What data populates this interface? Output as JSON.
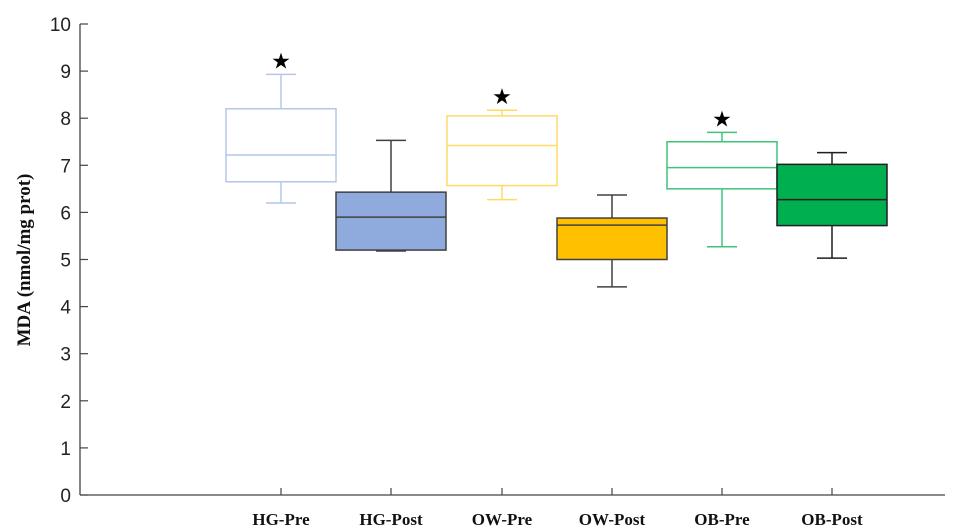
{
  "chart_data": {
    "type": "box",
    "title": "",
    "xlabel": "",
    "ylabel": "MDA (nmol/mg prot)",
    "ylim": [
      0,
      10
    ],
    "yticks": [
      0,
      1,
      2,
      3,
      4,
      5,
      6,
      7,
      8,
      9,
      10
    ],
    "grid": false,
    "categories": [
      "HG-Pre",
      "HG-Post",
      "OW-Pre",
      "OW-Post",
      "OB-Pre",
      "OB-Post"
    ],
    "boxes": [
      {
        "category": "HG-Pre",
        "whisker_low": 6.2,
        "q1": 6.65,
        "median": 7.22,
        "q3": 8.2,
        "whisker_high": 8.93,
        "significance": "★",
        "fill": "#ffffff",
        "stroke": "#b4c7e7",
        "median_color": "#b4c7e7"
      },
      {
        "category": "HG-Post",
        "whisker_low": 5.18,
        "q1": 5.2,
        "median": 5.9,
        "q3": 6.43,
        "whisker_high": 7.53,
        "significance": "",
        "fill": "#8faadc",
        "stroke": "#404040",
        "median_color": "#404040"
      },
      {
        "category": "OW-Pre",
        "whisker_low": 6.27,
        "q1": 6.57,
        "median": 7.42,
        "q3": 8.05,
        "whisker_high": 8.17,
        "significance": "★",
        "fill": "#ffffff",
        "stroke": "#ffd966",
        "median_color": "#ffd966"
      },
      {
        "category": "OW-Post",
        "whisker_low": 4.42,
        "q1": 5.0,
        "median": 5.73,
        "q3": 5.88,
        "whisker_high": 6.37,
        "significance": "",
        "fill": "#ffc000",
        "stroke": "#404040",
        "median_color": "#404040"
      },
      {
        "category": "OB-Pre",
        "whisker_low": 5.27,
        "q1": 6.5,
        "median": 6.95,
        "q3": 7.5,
        "whisker_high": 7.7,
        "significance": "★",
        "fill": "#ffffff",
        "stroke": "#3ec47a",
        "median_color": "#3ec47a"
      },
      {
        "category": "OB-Post",
        "whisker_low": 5.03,
        "q1": 5.72,
        "median": 6.27,
        "q3": 7.02,
        "whisker_high": 7.27,
        "significance": "",
        "fill": "#00b050",
        "stroke": "#1f1f1f",
        "median_color": "#1f1f1f"
      }
    ]
  }
}
